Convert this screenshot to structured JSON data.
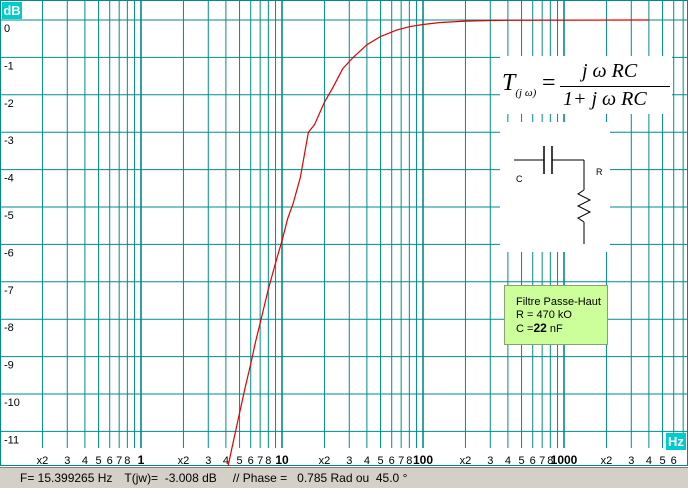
{
  "chart_data": {
    "type": "line",
    "x_scale": "log",
    "xlim": [
      0.1,
      4000
    ],
    "ylim": [
      -12,
      0.5
    ],
    "y_unit": "dB",
    "x_unit": "Hz",
    "grid": true,
    "x_decade_labels": [
      "1",
      "10",
      "100",
      "1000"
    ],
    "x_minor_labels": [
      "x2",
      "3",
      "4",
      "5",
      "6",
      "7",
      "8"
    ],
    "y_tick_labels": [
      "0",
      "-1",
      "-2",
      "-3",
      "-4",
      "-5",
      "-6",
      "-7",
      "-8",
      "-9",
      "-10",
      "-11"
    ],
    "y_tick_values": [
      0,
      -1,
      -2,
      -3,
      -4,
      -5,
      -6,
      -7,
      -8,
      -9,
      -10,
      -11
    ],
    "series": [
      {
        "color": "#e00000",
        "x": [
          4.0,
          4.5,
          5,
          5.5,
          6,
          6.5,
          7,
          8,
          9,
          10,
          11,
          12,
          13.5,
          15.4,
          17,
          20,
          23,
          27,
          32,
          40,
          50,
          65,
          80,
          100,
          130,
          160,
          200,
          300,
          400,
          4000
        ],
        "y": [
          -12.2,
          -11.3,
          -10.5,
          -9.8,
          -9.2,
          -8.6,
          -8.1,
          -7.2,
          -6.5,
          -5.9,
          -5.3,
          -4.9,
          -4.2,
          -3.0,
          -2.8,
          -2.2,
          -1.8,
          -1.3,
          -1.0,
          -0.66,
          -0.44,
          -0.27,
          -0.18,
          -0.12,
          -0.07,
          -0.05,
          -0.03,
          -0.013,
          -0.007,
          0
        ]
      }
    ]
  },
  "formula": {
    "lhs": "T",
    "lhs_sub": "(j ω)",
    "eq": "=",
    "numerator": "j ω RC",
    "denominator": "1+ j ω RC"
  },
  "circuit": {
    "c_label": "C",
    "r_label": "R"
  },
  "info": {
    "title": "Filtre Passe-Haut",
    "r_line": "R = 470 kO",
    "c_prefix": "C =",
    "c_value": "22",
    "c_unit": " nF"
  },
  "status": {
    "freq": "F= 15.399265 Hz",
    "gain": "T(jw)=  -3.008 dB",
    "phase": "// Phase =   0.785 Rad ou  45.0 °"
  },
  "colors": {
    "grid": "#008b8b",
    "curve": "#e00000",
    "unit_box": "#00cccc",
    "info_bg": "#ccff99"
  }
}
